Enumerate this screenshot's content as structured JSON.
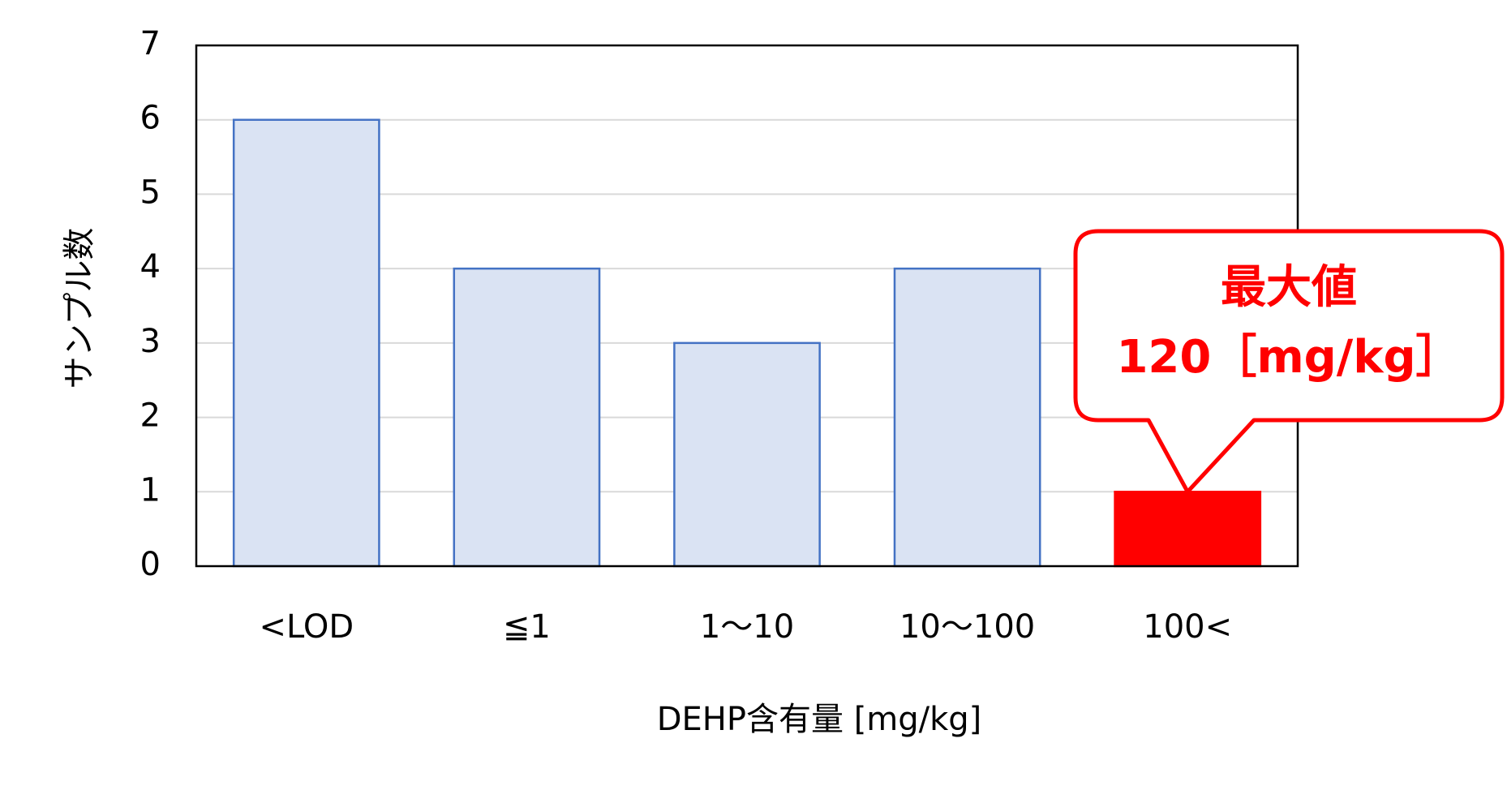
{
  "chart_data": {
    "type": "bar",
    "categories": [
      "<LOD",
      "≦1",
      "1～10",
      "10～100",
      "100<"
    ],
    "values": [
      6,
      4,
      3,
      4,
      1
    ],
    "colors": [
      "#dae3f3",
      "#dae3f3",
      "#dae3f3",
      "#dae3f3",
      "#ff0000"
    ],
    "edge_colors": [
      "#4472c4",
      "#4472c4",
      "#4472c4",
      "#4472c4",
      "#ff0000"
    ],
    "xlabel": "DEHP含有量 [mg/kg]",
    "ylabel": "サンプル数",
    "ylim": [
      0,
      7
    ],
    "yticks": [
      0,
      1,
      2,
      3,
      4,
      5,
      6,
      7
    ],
    "grid": true,
    "annotation": {
      "lines": [
        "最大値",
        "120［mg/kg］"
      ],
      "category_index": 4,
      "color": "#ff0000"
    }
  }
}
